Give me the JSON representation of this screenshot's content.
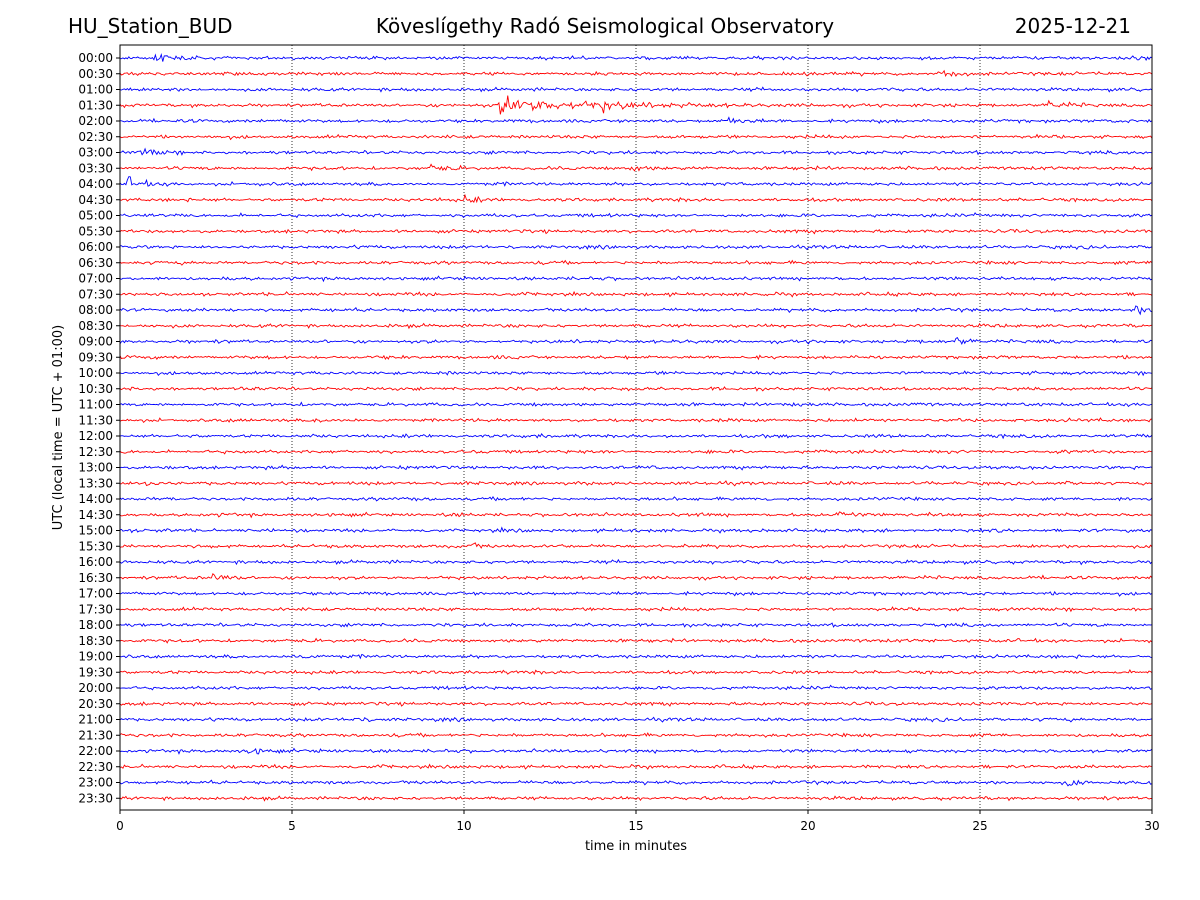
{
  "header": {
    "station": "HU_Station_BUD",
    "observatory": "Köveslígethy Radó Seismological Observatory",
    "date": "2025-12-21"
  },
  "chart_data": {
    "type": "line",
    "title": "Köveslígethy Radó Seismological Observatory",
    "xlabel": "time in minutes",
    "ylabel": "UTC (local time = UTC + 01:00)",
    "xlim": [
      0,
      30
    ],
    "xticks": [
      "0",
      "5",
      "10",
      "15",
      "20",
      "25",
      "30"
    ],
    "grid": "vertical dotted at 5-minute ticks",
    "row_labels": [
      "00:00",
      "00:30",
      "01:00",
      "01:30",
      "02:00",
      "02:30",
      "03:00",
      "03:30",
      "04:00",
      "04:30",
      "05:00",
      "05:30",
      "06:00",
      "06:30",
      "07:00",
      "07:30",
      "08:00",
      "08:30",
      "09:00",
      "09:30",
      "10:00",
      "10:30",
      "11:00",
      "11:30",
      "12:00",
      "12:30",
      "13:00",
      "13:30",
      "14:00",
      "14:30",
      "15:00",
      "15:30",
      "16:00",
      "16:30",
      "17:00",
      "17:30",
      "18:00",
      "18:30",
      "19:00",
      "19:30",
      "20:00",
      "20:30",
      "21:00",
      "21:30",
      "22:00",
      "22:30",
      "23:00",
      "23:30"
    ],
    "trace_colors": [
      "#0000ff",
      "#ff0000"
    ],
    "events": [
      {
        "row": "00:00",
        "minute": 1.0,
        "strength": 0.6
      },
      {
        "row": "00:30",
        "minute": 23.8,
        "strength": 0.5
      },
      {
        "row": "01:30",
        "minute": 11.0,
        "strength": 1.0,
        "duration": 5.0
      },
      {
        "row": "01:30",
        "minute": 14.0,
        "strength": 0.4
      },
      {
        "row": "01:30",
        "minute": 27.0,
        "strength": 0.45
      },
      {
        "row": "02:00",
        "minute": 17.7,
        "strength": 0.5
      },
      {
        "row": "03:00",
        "minute": 0.6,
        "strength": 0.5
      },
      {
        "row": "03:30",
        "minute": 9.0,
        "strength": 0.4
      },
      {
        "row": "03:30",
        "minute": 14.8,
        "strength": 0.4
      },
      {
        "row": "04:00",
        "minute": 0.1,
        "strength": 0.9
      },
      {
        "row": "04:30",
        "minute": 10.0,
        "strength": 0.4
      },
      {
        "row": "08:00",
        "minute": 29.5,
        "strength": 0.5
      },
      {
        "row": "09:00",
        "minute": 24.3,
        "strength": 0.45
      },
      {
        "row": "11:30",
        "minute": 5.5,
        "strength": 0.4
      },
      {
        "row": "13:30",
        "minute": 0.7,
        "strength": 0.55
      },
      {
        "row": "14:30",
        "minute": 20.8,
        "strength": 0.45
      },
      {
        "row": "15:30",
        "minute": 10.0,
        "strength": 0.4
      },
      {
        "row": "16:30",
        "minute": 2.7,
        "strength": 0.5
      },
      {
        "row": "19:00",
        "minute": 5.0,
        "strength": 0.45
      },
      {
        "row": "21:00",
        "minute": 6.7,
        "strength": 0.4
      },
      {
        "row": "22:00",
        "minute": 3.7,
        "strength": 0.5
      },
      {
        "row": "23:00",
        "minute": 27.5,
        "strength": 0.4
      }
    ]
  }
}
